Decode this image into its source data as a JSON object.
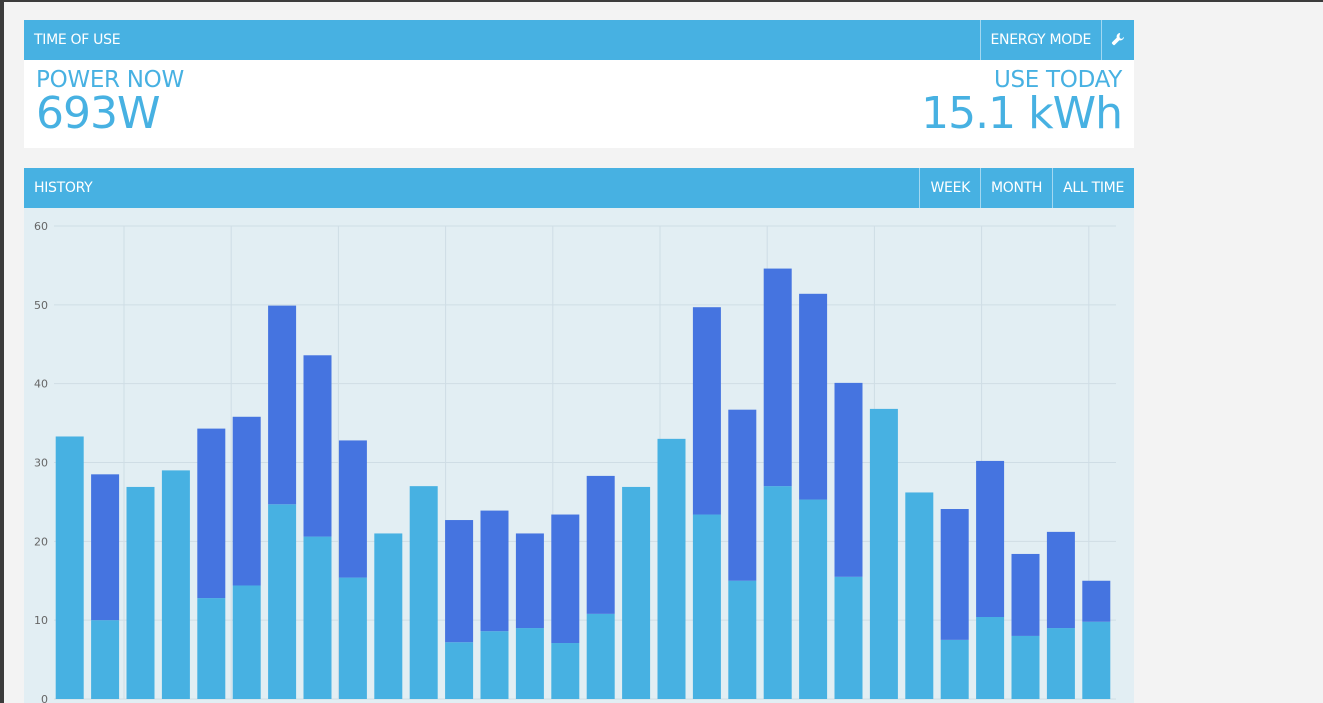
{
  "time_of_use": {
    "title": "TIME OF USE",
    "energy_mode_label": "ENERGY MODE",
    "settings_icon": "wrench-icon",
    "power_now_label": "POWER NOW",
    "power_now_value": "693W",
    "use_today_label": "USE TODAY",
    "use_today_value": "15.1 kWh"
  },
  "history": {
    "title": "HISTORY",
    "tabs": [
      "WEEK",
      "MONTH",
      "ALL TIME"
    ]
  },
  "colors": {
    "accent": "#47b1e2",
    "dark_bar": "#4574e0",
    "chart_bg": "#e2eef3"
  },
  "chart_data": {
    "type": "bar",
    "stacked": true,
    "ylim": [
      0,
      60
    ],
    "yticks": [
      0,
      10,
      20,
      30,
      40,
      50,
      60
    ],
    "grid": true,
    "series": [
      {
        "values": [
          33.3,
          10,
          26.9,
          29,
          12.8,
          14.4,
          24.7,
          20.6,
          15.4,
          21,
          27,
          7.2,
          8.6,
          9,
          7.1,
          10.8,
          26.9,
          33,
          23.4,
          15,
          27,
          25.3,
          15.5,
          36.8,
          26.2,
          7.5,
          10.4,
          8,
          9,
          9.8
        ]
      },
      {
        "values": [
          0,
          18.5,
          0,
          0,
          21.5,
          21.4,
          25.2,
          23,
          17.4,
          0,
          0,
          15.5,
          15.3,
          12,
          16.3,
          17.5,
          0,
          0,
          26.3,
          21.7,
          27.6,
          26.1,
          24.6,
          0,
          0,
          16.6,
          19.8,
          10.4,
          12.2,
          5.2
        ]
      }
    ]
  }
}
